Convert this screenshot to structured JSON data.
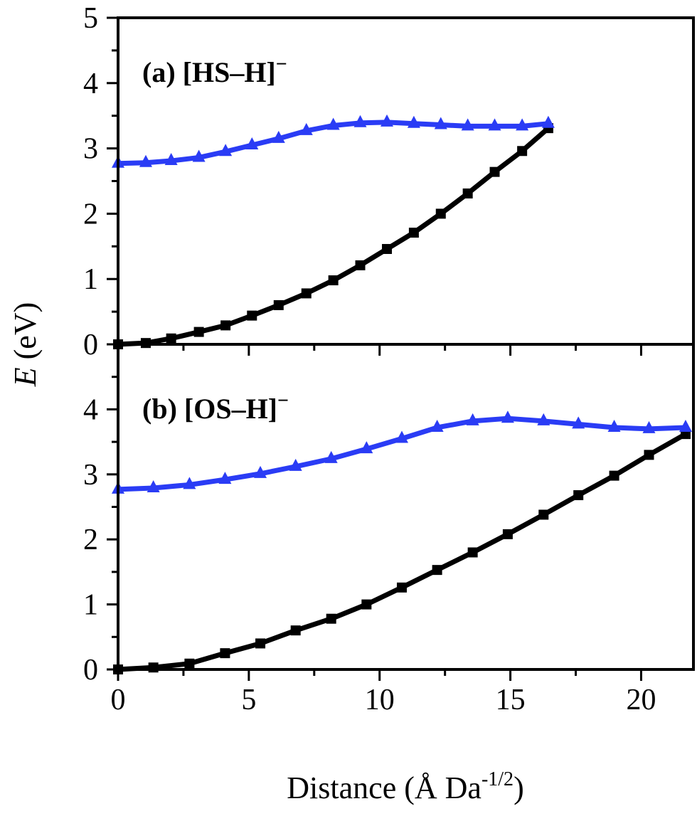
{
  "chart_data": [
    {
      "type": "line",
      "panel_label": "(a) [HS–H]",
      "panel_label_sup": "−",
      "xlim": [
        0,
        22
      ],
      "ylim": [
        0,
        5
      ],
      "yticks": [
        "0",
        "1",
        "2",
        "3",
        "4",
        "5"
      ],
      "grid": false,
      "series": [
        {
          "color": "#000000",
          "marker": "square",
          "x": [
            0,
            1.06,
            2.03,
            3.09,
            4.11,
            5.12,
            6.14,
            7.2,
            8.23,
            9.26,
            10.28,
            11.31,
            12.34,
            13.37,
            14.4,
            15.45,
            16.45
          ],
          "y": [
            0,
            0.02,
            0.09,
            0.19,
            0.29,
            0.44,
            0.6,
            0.78,
            0.98,
            1.21,
            1.46,
            1.71,
            2.0,
            2.31,
            2.64,
            2.96,
            3.31
          ]
        },
        {
          "color": "#2a3cf5",
          "marker": "triangle",
          "x": [
            0,
            1.06,
            2.03,
            3.09,
            4.11,
            5.12,
            6.14,
            7.2,
            8.23,
            9.26,
            10.28,
            11.31,
            12.34,
            13.37,
            14.4,
            15.45,
            16.45
          ],
          "y": [
            2.77,
            2.78,
            2.81,
            2.86,
            2.95,
            3.05,
            3.15,
            3.27,
            3.35,
            3.39,
            3.4,
            3.38,
            3.36,
            3.34,
            3.34,
            3.34,
            3.38
          ]
        }
      ]
    },
    {
      "type": "line",
      "panel_label": "(b) [OS–H]",
      "panel_label_sup": "−",
      "xlim": [
        0,
        22
      ],
      "ylim": [
        0,
        5
      ],
      "yticks": [
        "0",
        "1",
        "2",
        "3",
        "4"
      ],
      "xticks": [
        "0",
        "5",
        "10",
        "15",
        "20"
      ],
      "grid": false,
      "series": [
        {
          "color": "#000000",
          "marker": "square",
          "x": [
            0,
            1.35,
            2.73,
            4.09,
            5.44,
            6.79,
            8.15,
            9.5,
            10.85,
            12.2,
            13.56,
            14.9,
            16.27,
            17.6,
            18.97,
            20.3,
            21.7
          ],
          "y": [
            0,
            0.03,
            0.09,
            0.25,
            0.4,
            0.6,
            0.78,
            1.0,
            1.26,
            1.53,
            1.8,
            2.08,
            2.38,
            2.68,
            2.98,
            3.3,
            3.62
          ]
        },
        {
          "color": "#2a3cf5",
          "marker": "triangle",
          "x": [
            0,
            1.35,
            2.73,
            4.09,
            5.44,
            6.79,
            8.15,
            9.5,
            10.85,
            12.2,
            13.56,
            14.9,
            16.27,
            17.6,
            18.97,
            20.3,
            21.7
          ],
          "y": [
            2.77,
            2.79,
            2.84,
            2.92,
            3.01,
            3.12,
            3.24,
            3.39,
            3.55,
            3.72,
            3.82,
            3.86,
            3.82,
            3.77,
            3.72,
            3.7,
            3.72
          ]
        }
      ]
    }
  ],
  "ylabel_italic": "E",
  "ylabel_rest": " (eV)",
  "xlabel_main": "Distance (Å Da",
  "xlabel_sup": "-1/2",
  "xlabel_end": ")"
}
